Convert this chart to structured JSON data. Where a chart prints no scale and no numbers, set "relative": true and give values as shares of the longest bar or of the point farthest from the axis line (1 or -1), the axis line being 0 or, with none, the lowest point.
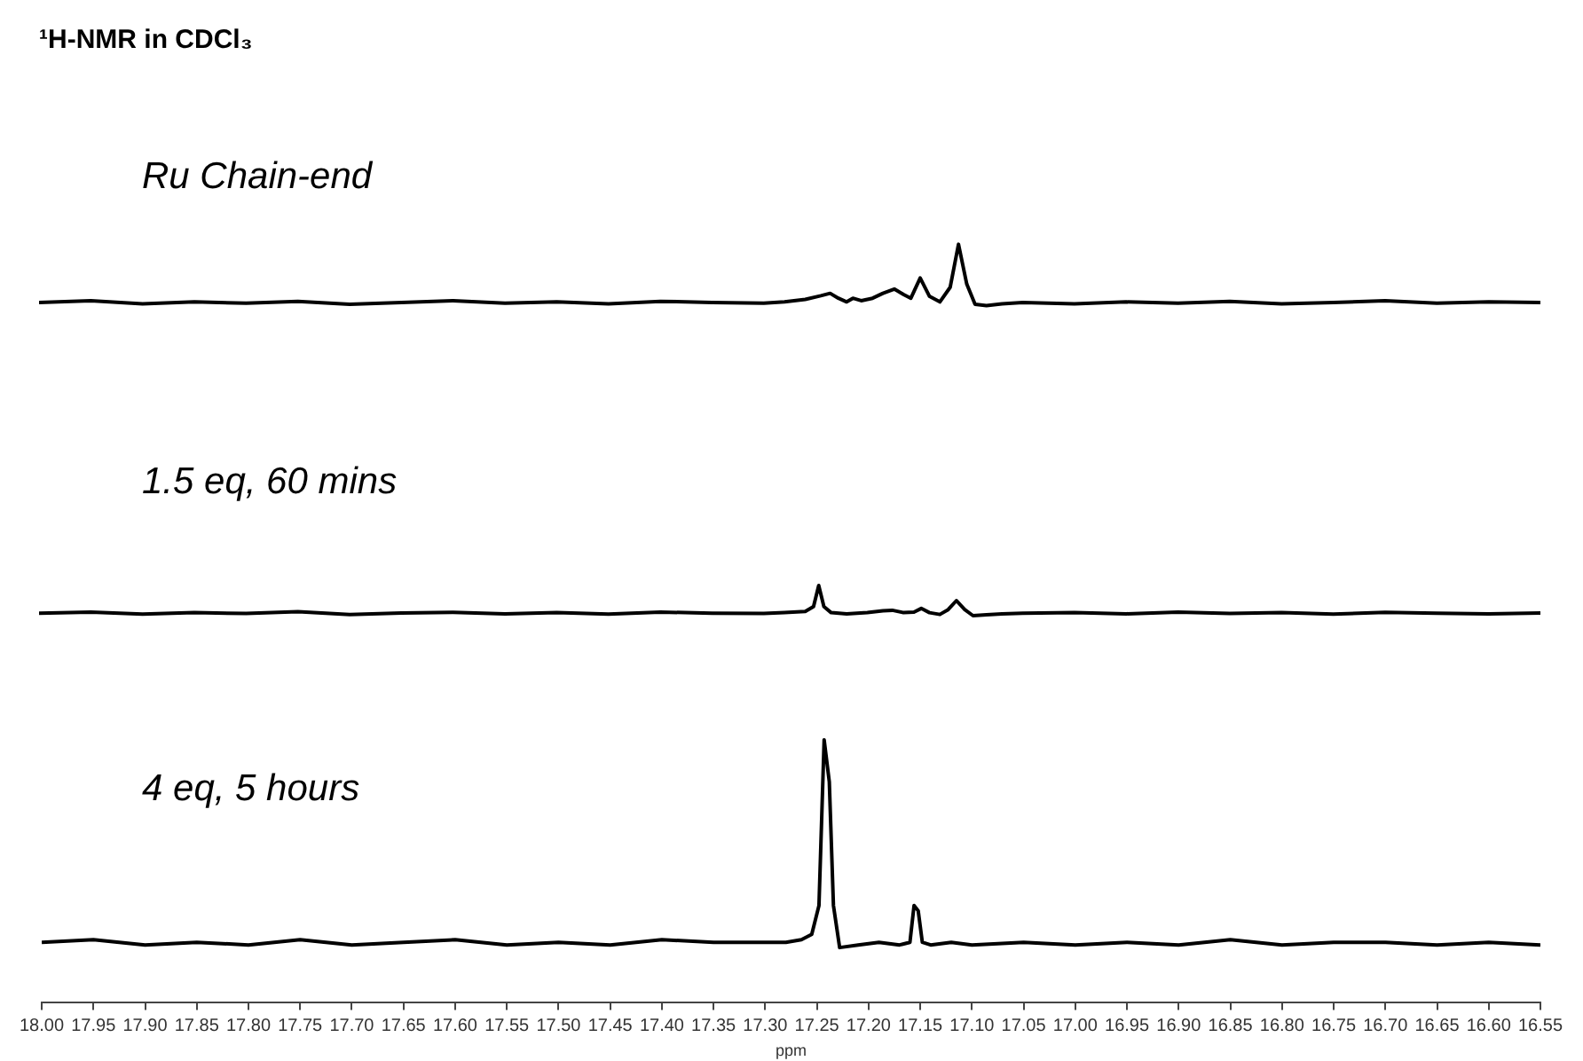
{
  "chart_data": [
    {
      "type": "line",
      "title": "¹H-NMR in CDCl₃",
      "relative": true,
      "xlim": [
        18.0,
        16.55
      ],
      "tick_labels": false,
      "annotations": [
        "Ru Chain-end"
      ],
      "series": [
        {
          "color": "#000000",
          "x": [
            18.0,
            17.95,
            17.9,
            17.85,
            17.8,
            17.75,
            17.7,
            17.65,
            17.6,
            17.55,
            17.5,
            17.45,
            17.4,
            17.35,
            17.3,
            17.28,
            17.26,
            17.245,
            17.236,
            17.228,
            17.22,
            17.214,
            17.206,
            17.195,
            17.185,
            17.174,
            17.165,
            17.158,
            17.149,
            17.14,
            17.13,
            17.12,
            17.112,
            17.104,
            17.096,
            17.085,
            17.07,
            17.05,
            17.0,
            16.95,
            16.9,
            16.85,
            16.8,
            16.75,
            16.7,
            16.65,
            16.6,
            16.55
          ],
          "values": [
            0.05,
            0.08,
            0.03,
            0.06,
            0.04,
            0.07,
            0.02,
            0.05,
            0.08,
            0.04,
            0.06,
            0.03,
            0.07,
            0.05,
            0.04,
            0.06,
            0.1,
            0.16,
            0.2,
            0.12,
            0.06,
            0.12,
            0.08,
            0.12,
            0.2,
            0.27,
            0.18,
            0.12,
            0.45,
            0.15,
            0.06,
            0.3,
            1,
            0.35,
            0.02,
            0,
            0.03,
            0.05,
            0.03,
            0.06,
            0.04,
            0.07,
            0.03,
            0.05,
            0.08,
            0.04,
            0.06,
            0.05
          ]
        }
      ]
    },
    {
      "type": "line",
      "relative": true,
      "xlim": [
        18.0,
        16.55
      ],
      "tick_labels": false,
      "annotations": [
        "1.5 eq, 60 mins"
      ],
      "series": [
        {
          "color": "#000000",
          "x": [
            18.0,
            17.95,
            17.9,
            17.85,
            17.8,
            17.75,
            17.7,
            17.65,
            17.6,
            17.55,
            17.5,
            17.45,
            17.4,
            17.35,
            17.3,
            17.28,
            17.26,
            17.252,
            17.247,
            17.242,
            17.235,
            17.22,
            17.2,
            17.185,
            17.176,
            17.165,
            17.155,
            17.148,
            17.14,
            17.13,
            17.122,
            17.114,
            17.106,
            17.098,
            17.085,
            17.07,
            17.05,
            17.0,
            16.95,
            16.9,
            16.85,
            16.8,
            16.75,
            16.7,
            16.65,
            16.6,
            16.55
          ],
          "values": [
            0.08,
            0.12,
            0.05,
            0.1,
            0.07,
            0.13,
            0.04,
            0.09,
            0.11,
            0.06,
            0.1,
            0.05,
            0.12,
            0.08,
            0.07,
            0.1,
            0.14,
            0.3,
            1,
            0.3,
            0.1,
            0.06,
            0.1,
            0.16,
            0.18,
            0.1,
            0.12,
            0.24,
            0.1,
            0.04,
            0.2,
            0.5,
            0.2,
            0,
            0.03,
            0.06,
            0.08,
            0.1,
            0.06,
            0.12,
            0.07,
            0.1,
            0.05,
            0.11,
            0.08,
            0.06,
            0.09
          ]
        }
      ]
    },
    {
      "type": "line",
      "relative": true,
      "xlabel": "ppm",
      "xlim": [
        18.0,
        16.55
      ],
      "tick_labels": "x",
      "annotations": [
        "4 eq, 5 hours"
      ],
      "xticks": [
        {
          "value": 18.0,
          "label": "18.00"
        },
        {
          "value": 17.95,
          "label": "17.95"
        },
        {
          "value": 17.9,
          "label": "17.90"
        },
        {
          "value": 17.85,
          "label": "17.85"
        },
        {
          "value": 17.8,
          "label": "17.80"
        },
        {
          "value": 17.75,
          "label": "17.75"
        },
        {
          "value": 17.7,
          "label": "17.70"
        },
        {
          "value": 17.65,
          "label": "17.65"
        },
        {
          "value": 17.6,
          "label": "17.60"
        },
        {
          "value": 17.55,
          "label": "17.55"
        },
        {
          "value": 17.5,
          "label": "17.50"
        },
        {
          "value": 17.45,
          "label": "17.45"
        },
        {
          "value": 17.4,
          "label": "17.40"
        },
        {
          "value": 17.35,
          "label": "17.35"
        },
        {
          "value": 17.3,
          "label": "17.30"
        },
        {
          "value": 17.25,
          "label": "17.25"
        },
        {
          "value": 17.2,
          "label": "17.20"
        },
        {
          "value": 17.15,
          "label": "17.15"
        },
        {
          "value": 17.1,
          "label": "17.10"
        },
        {
          "value": 17.05,
          "label": "17.05"
        },
        {
          "value": 17.0,
          "label": "17.00"
        },
        {
          "value": 16.95,
          "label": "16.95"
        },
        {
          "value": 16.9,
          "label": "16.90"
        },
        {
          "value": 16.85,
          "label": "16.85"
        },
        {
          "value": 16.8,
          "label": "16.80"
        },
        {
          "value": 16.75,
          "label": "16.75"
        },
        {
          "value": 16.7,
          "label": "16.70"
        },
        {
          "value": 16.65,
          "label": "16.65"
        },
        {
          "value": 16.6,
          "label": "16.60"
        },
        {
          "value": 16.55,
          "label": "16.55"
        }
      ],
      "series": [
        {
          "color": "#000000",
          "x": [
            18.0,
            17.95,
            17.9,
            17.85,
            17.8,
            17.75,
            17.7,
            17.65,
            17.6,
            17.55,
            17.5,
            17.45,
            17.4,
            17.35,
            17.3,
            17.28,
            17.265,
            17.255,
            17.248,
            17.243,
            17.238,
            17.234,
            17.228,
            17.21,
            17.19,
            17.17,
            17.16,
            17.156,
            17.152,
            17.148,
            17.14,
            17.12,
            17.1,
            17.05,
            17.0,
            16.95,
            16.9,
            16.85,
            16.8,
            16.75,
            16.7,
            16.65,
            16.6,
            16.55
          ],
          "values": [
            0.23,
            0.24,
            0.22,
            0.23,
            0.22,
            0.24,
            0.22,
            0.23,
            0.24,
            0.22,
            0.23,
            0.22,
            0.24,
            0.23,
            0.23,
            0.23,
            0.24,
            0.26,
            0.37,
            1,
            0.84,
            0.37,
            0.21,
            0.22,
            0.23,
            0.22,
            0.23,
            0.37,
            0.35,
            0.23,
            0.22,
            0.23,
            0.22,
            0.23,
            0.22,
            0.23,
            0.22,
            0.24,
            0.22,
            0.23,
            0.23,
            0.22,
            0.23,
            0.22
          ]
        }
      ]
    }
  ]
}
